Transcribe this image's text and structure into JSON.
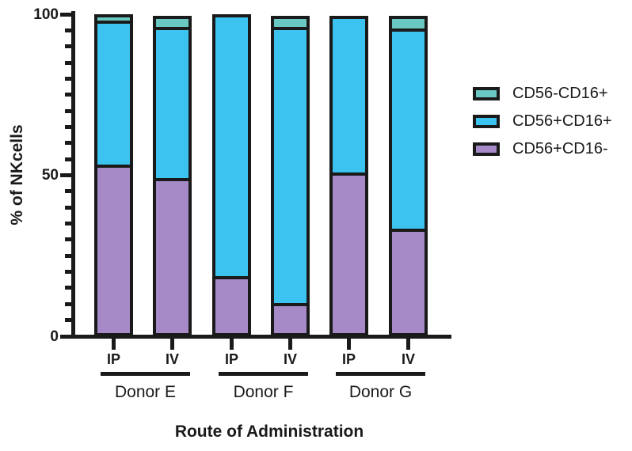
{
  "chart_data": {
    "type": "bar",
    "stacked": true,
    "xlabel": "Route of Administration",
    "ylabel": "% of NKcells",
    "ylim": [
      0,
      100
    ],
    "yticks_major": [
      0,
      50,
      100
    ],
    "ytick_minor_step": 5,
    "grid": false,
    "legend_position": "right",
    "legend_order_top_to_bottom": [
      "CD56-CD16+",
      "CD56+CD16+",
      "CD56+CD16-"
    ],
    "groups": [
      {
        "label": "Donor E",
        "categories": [
          "IP",
          "IV"
        ]
      },
      {
        "label": "Donor F",
        "categories": [
          "IP",
          "IV"
        ]
      },
      {
        "label": "Donor G",
        "categories": [
          "IP",
          "IV"
        ]
      }
    ],
    "bar_order": [
      "Donor E IP",
      "Donor E IV",
      "Donor F IP",
      "Donor F IV",
      "Donor G IP",
      "Donor G IV"
    ],
    "series": [
      {
        "name": "CD56+CD16-",
        "color": "#a68ac8",
        "values": [
          52.5,
          48.0,
          17.0,
          8.5,
          50.0,
          32.0
        ]
      },
      {
        "name": "CD56+CD16+",
        "color": "#3cc3f0",
        "values": [
          45.5,
          48.0,
          83.0,
          87.5,
          49.5,
          63.5
        ]
      },
      {
        "name": "CD56-CD16+",
        "color": "#6ac8c2",
        "values": [
          2.0,
          3.5,
          0.0,
          3.5,
          0.0,
          4.0
        ]
      }
    ],
    "bar_totals": [
      100.0,
      99.5,
      100.0,
      99.5,
      99.5,
      99.5
    ]
  },
  "colors": {
    "axis": "#1a1a1a",
    "background": "#ffffff",
    "cd56_minus_cd16_plus": "#6ac8c2",
    "cd56_plus_cd16_plus": "#3cc3f0",
    "cd56_plus_cd16_minus": "#a68ac8"
  }
}
